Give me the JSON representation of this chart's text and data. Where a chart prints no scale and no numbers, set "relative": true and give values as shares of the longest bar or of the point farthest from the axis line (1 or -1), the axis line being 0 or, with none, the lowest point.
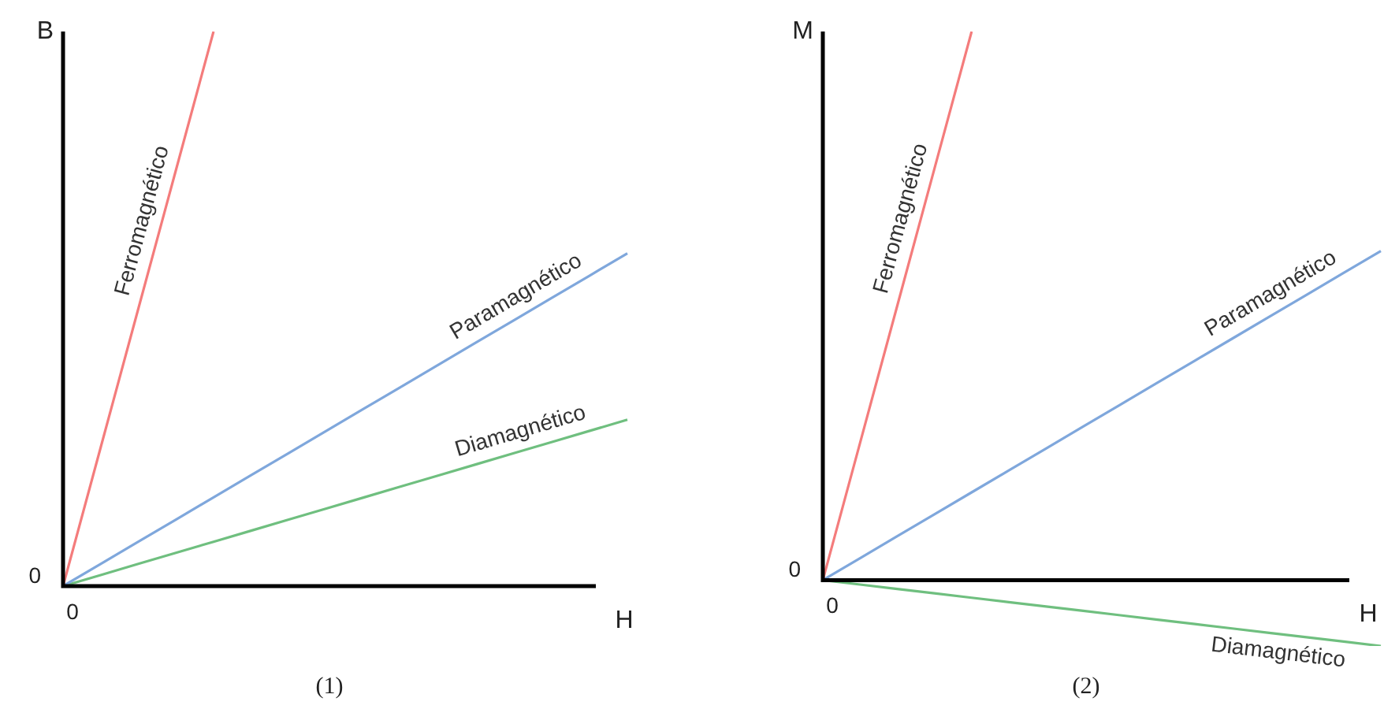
{
  "chart_data": [
    {
      "type": "line",
      "title": "(1)",
      "xlabel": "H",
      "ylabel": "B",
      "relative": true,
      "legend": false,
      "marker": "none",
      "annotations": [
        "0",
        "0"
      ],
      "categories": [
        null,
        null,
        null,
        null,
        null,
        null,
        null,
        null,
        null,
        null,
        null,
        null,
        null,
        null,
        null,
        null
      ],
      "series": [
        {
          "name": "Ferromagnético",
          "color": "#f47c7c",
          "values": [
            0,
            0.25,
            0.5,
            0.75,
            1,
            null,
            null,
            null,
            null,
            null,
            null,
            null,
            null,
            null,
            null,
            null
          ]
        },
        {
          "name": "Paramagnético",
          "color": "#7fa7dc",
          "values": [
            0,
            0.04,
            0.08,
            0.12,
            0.16,
            0.2,
            0.24,
            0.28,
            0.32,
            0.36,
            0.4,
            0.44,
            0.48,
            0.52,
            0.56,
            0.6
          ]
        },
        {
          "name": "Diamagnético",
          "color": "#6fbf7f",
          "values": [
            0,
            0.02,
            0.04,
            0.06,
            0.08,
            0.1,
            0.12,
            0.14,
            0.16,
            0.18,
            0.2,
            0.22,
            0.24,
            0.26,
            0.28,
            0.3
          ]
        }
      ]
    },
    {
      "type": "line",
      "title": "(2)",
      "xlabel": "H",
      "ylabel": "M",
      "relative": true,
      "legend": false,
      "marker": "none",
      "annotations": [
        "0",
        "0"
      ],
      "categories": [
        null,
        null,
        null,
        null,
        null,
        null,
        null,
        null,
        null,
        null,
        null,
        null,
        null,
        null,
        null,
        null
      ],
      "series": [
        {
          "name": "Ferromagnético",
          "color": "#f47c7c",
          "values": [
            0,
            0.25,
            0.5,
            0.75,
            1,
            null,
            null,
            null,
            null,
            null,
            null,
            null,
            null,
            null,
            null,
            null
          ]
        },
        {
          "name": "Paramagnético",
          "color": "#7fa7dc",
          "values": [
            0,
            0.04,
            0.08,
            0.12,
            0.16,
            0.2,
            0.24,
            0.28,
            0.32,
            0.36,
            0.4,
            0.44,
            0.48,
            0.52,
            0.56,
            0.6
          ]
        },
        {
          "name": "Diamagnético",
          "color": "#6fbf7f",
          "values": [
            0,
            -0.008,
            -0.016,
            -0.024,
            -0.032,
            -0.04,
            -0.048,
            -0.056,
            -0.064,
            -0.072,
            -0.08,
            -0.088,
            -0.096,
            -0.104,
            -0.112,
            -0.12
          ]
        }
      ]
    }
  ]
}
